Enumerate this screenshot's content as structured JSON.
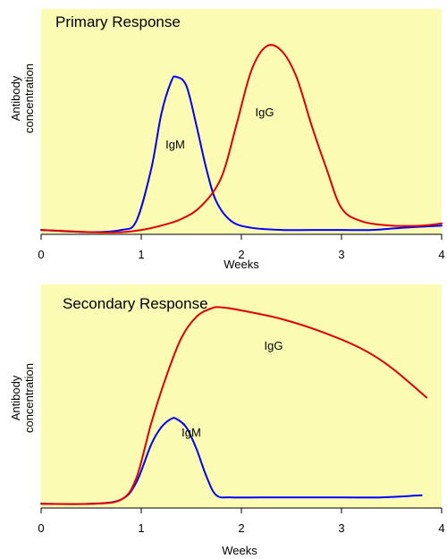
{
  "chart_data": [
    {
      "type": "line",
      "title": "Primary Response",
      "xlabel": "Weeks",
      "ylabel": "Antibody concentration",
      "xlim": [
        0,
        4
      ],
      "ylim": [
        0,
        1
      ],
      "xticks": [
        "0",
        "1",
        "2",
        "3",
        "4"
      ],
      "grid": false,
      "series": [
        {
          "name": "IgM",
          "color": "#0000ff",
          "x": [
            0,
            0.5,
            0.8,
            0.95,
            1.1,
            1.2,
            1.3,
            1.35,
            1.45,
            1.55,
            1.65,
            1.75,
            1.9,
            2.1,
            2.4,
            2.7,
            3.0,
            3.3,
            3.6,
            4.0
          ],
          "y": [
            0.02,
            0.01,
            0.02,
            0.06,
            0.3,
            0.55,
            0.7,
            0.72,
            0.68,
            0.5,
            0.3,
            0.15,
            0.06,
            0.03,
            0.02,
            0.02,
            0.02,
            0.02,
            0.03,
            0.04
          ]
        },
        {
          "name": "IgG",
          "color": "#e00000",
          "x": [
            0,
            0.5,
            0.8,
            1.0,
            1.2,
            1.4,
            1.6,
            1.8,
            1.95,
            2.1,
            2.25,
            2.4,
            2.55,
            2.7,
            2.85,
            3.0,
            3.2,
            3.5,
            3.8,
            4.0
          ],
          "y": [
            0.02,
            0.01,
            0.01,
            0.02,
            0.04,
            0.07,
            0.13,
            0.26,
            0.5,
            0.75,
            0.86,
            0.84,
            0.72,
            0.5,
            0.3,
            0.12,
            0.06,
            0.04,
            0.04,
            0.05
          ]
        }
      ]
    },
    {
      "type": "line",
      "title": "Secondary Response",
      "xlabel": "Weeks",
      "ylabel": "Antibody concentration",
      "xlim": [
        0,
        4
      ],
      "ylim": [
        0,
        1
      ],
      "xticks": [
        "0",
        "1",
        "2",
        "3",
        "4"
      ],
      "grid": false,
      "series": [
        {
          "name": "IgM",
          "color": "#0000ff",
          "x": [
            0,
            0.5,
            0.8,
            0.95,
            1.1,
            1.2,
            1.3,
            1.35,
            1.45,
            1.55,
            1.65,
            1.75,
            1.9,
            2.2,
            2.6,
            3.0,
            3.4,
            3.8
          ],
          "y": [
            0.02,
            0.02,
            0.04,
            0.12,
            0.3,
            0.38,
            0.42,
            0.42,
            0.38,
            0.28,
            0.15,
            0.06,
            0.05,
            0.05,
            0.05,
            0.05,
            0.05,
            0.06
          ]
        },
        {
          "name": "IgG",
          "color": "#e00000",
          "x": [
            0,
            0.5,
            0.8,
            0.95,
            1.1,
            1.25,
            1.4,
            1.55,
            1.7,
            1.8,
            2.0,
            2.4,
            2.8,
            3.2,
            3.5,
            3.85
          ],
          "y": [
            0.02,
            0.02,
            0.04,
            0.14,
            0.4,
            0.62,
            0.8,
            0.9,
            0.94,
            0.945,
            0.93,
            0.89,
            0.83,
            0.75,
            0.66,
            0.52
          ]
        }
      ]
    }
  ]
}
